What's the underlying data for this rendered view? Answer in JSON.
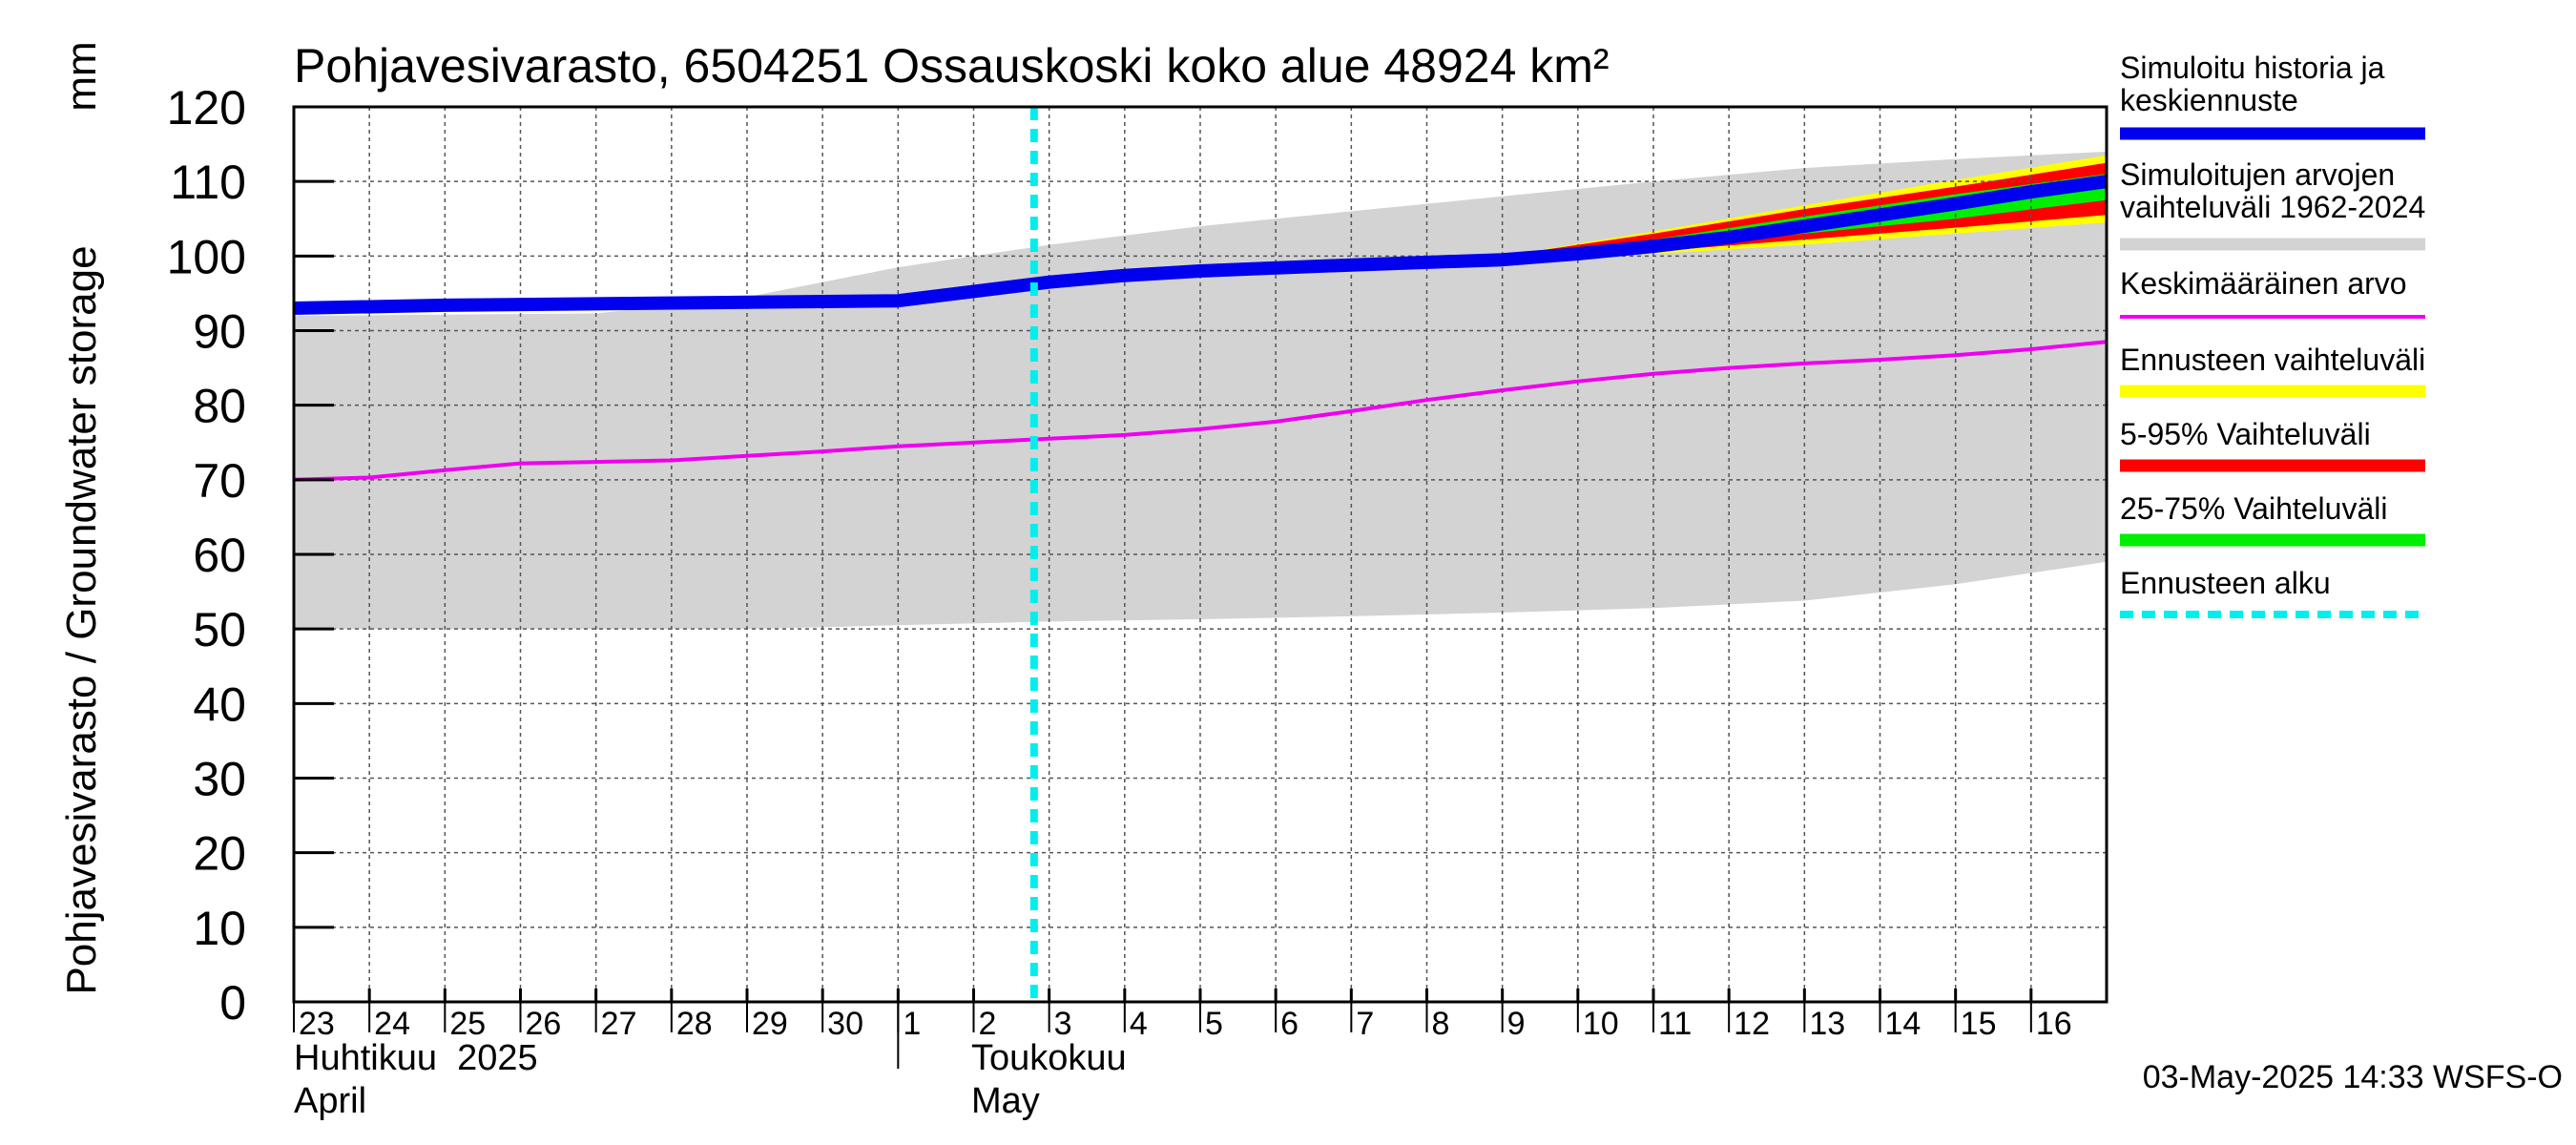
{
  "chart_data": {
    "type": "area",
    "title": "Pohjavesivarasto, 6504251 Ossauskoski koko alue 48924 km²",
    "ylabel": "Pohjavesivarasto / Groundwater storage",
    "yunit": "mm",
    "ylim": [
      0,
      120
    ],
    "yticks": [
      0,
      10,
      20,
      30,
      40,
      50,
      60,
      70,
      80,
      90,
      100,
      110,
      120
    ],
    "xlim": [
      "2025-04-23",
      "2025-05-17"
    ],
    "x_tick_labels": [
      "23",
      "24",
      "25",
      "26",
      "27",
      "28",
      "29",
      "30",
      "1",
      "2",
      "3",
      "4",
      "5",
      "6",
      "7",
      "8",
      "9",
      "10",
      "11",
      "12",
      "13",
      "14",
      "15",
      "16"
    ],
    "month_labels": [
      {
        "fi": "Huhtikuu  2025",
        "en": "April"
      },
      {
        "fi": "Toukokuu",
        "en": "May"
      }
    ],
    "grid": true,
    "legend_position": "right",
    "forecast_start": "2025-05-03",
    "timestamp": "03-May-2025 14:33 WSFS-O",
    "colors": {
      "simulated": "#0000ee",
      "historical_range": "#d3d3d3",
      "mean": "#ee00ee",
      "forecast_range": "#ffff00",
      "range_5_95": "#ff0000",
      "range_25_75": "#00ee00",
      "forecast_start": "#00eeee"
    },
    "legend": [
      {
        "key": "simulated",
        "label": "Simuloitu historia ja keskiennuste"
      },
      {
        "key": "historical_range",
        "label": "Simuloitujen arvojen vaihteluväli 1962-2024"
      },
      {
        "key": "mean",
        "label": "Keskimääräinen arvo"
      },
      {
        "key": "forecast_range",
        "label": "Ennusteen vaihteluväli"
      },
      {
        "key": "range_5_95",
        "label": "5-95% Vaihteluväli"
      },
      {
        "key": "range_25_75",
        "label": "25-75% Vaihteluväli"
      },
      {
        "key": "forecast_start",
        "label": "Ennusteen alku"
      }
    ],
    "series": [
      {
        "key": "simulated",
        "name": "Simuloitu historia ja keskiennuste",
        "x": [
          "2025-04-23",
          "2025-04-25",
          "2025-04-27",
          "2025-04-29",
          "2025-05-01",
          "2025-05-03",
          "2025-05-04",
          "2025-05-05",
          "2025-05-07",
          "2025-05-09",
          "2025-05-10",
          "2025-05-11",
          "2025-05-12",
          "2025-05-13",
          "2025-05-14",
          "2025-05-15",
          "2025-05-16",
          "2025-05-17"
        ],
        "y": [
          93,
          93.4,
          93.6,
          93.8,
          94,
          96.5,
          97.4,
          98,
          98.8,
          99.5,
          100.3,
          101.3,
          102.5,
          104,
          105.5,
          107,
          108.6,
          110
        ]
      },
      {
        "key": "mean",
        "name": "Keskimääräinen arvo",
        "x": [
          "2025-04-23",
          "2025-04-24",
          "2025-04-25",
          "2025-04-26",
          "2025-04-27",
          "2025-04-28",
          "2025-04-29",
          "2025-04-30",
          "2025-05-01",
          "2025-05-02",
          "2025-05-03",
          "2025-05-04",
          "2025-05-05",
          "2025-05-06",
          "2025-05-07",
          "2025-05-08",
          "2025-05-09",
          "2025-05-10",
          "2025-05-11",
          "2025-05-12",
          "2025-05-13",
          "2025-05-14",
          "2025-05-15",
          "2025-05-16",
          "2025-05-17"
        ],
        "y": [
          70,
          70.3,
          71.3,
          72.2,
          72.4,
          72.6,
          73.2,
          73.8,
          74.5,
          75,
          75.5,
          76,
          76.8,
          77.8,
          79.2,
          80.7,
          82,
          83.2,
          84.2,
          85,
          85.6,
          86.1,
          86.7,
          87.5,
          88.5
        ]
      },
      {
        "key": "historical_range",
        "name": "Simuloitujen arvojen vaihteluväli 1962-2024",
        "x": [
          "2025-04-23",
          "2025-04-27",
          "2025-04-29",
          "2025-05-01",
          "2025-05-03",
          "2025-05-05",
          "2025-05-07",
          "2025-05-09",
          "2025-05-11",
          "2025-05-13",
          "2025-05-15",
          "2025-05-17"
        ],
        "upper": [
          92,
          92.3,
          94.5,
          98.5,
          101.5,
          104,
          106,
          108,
          110,
          111.8,
          113,
          114
        ],
        "lower": [
          50,
          50,
          50,
          50.5,
          51,
          51.3,
          51.7,
          52.2,
          52.8,
          53.8,
          56,
          59
        ]
      },
      {
        "key": "forecast_range",
        "name": "Ennusteen vaihteluväli",
        "x": [
          "2025-05-09",
          "2025-05-11",
          "2025-05-13",
          "2025-05-15",
          "2025-05-17"
        ],
        "upper": [
          100,
          103.3,
          106.8,
          110.2,
          113.5
        ],
        "lower": [
          99.5,
          100.3,
          101.5,
          103,
          104.5
        ]
      },
      {
        "key": "range_5_95",
        "name": "5-95% Vaihteluväli",
        "x": [
          "2025-05-09",
          "2025-05-11",
          "2025-05-13",
          "2025-05-15",
          "2025-05-17"
        ],
        "upper": [
          100,
          103,
          106.3,
          109.3,
          112.5
        ],
        "lower": [
          99.5,
          100.6,
          102.2,
          103.8,
          105.5
        ]
      },
      {
        "key": "range_25_75",
        "name": "25-75% Vaihteluväli",
        "x": [
          "2025-05-09",
          "2025-05-11",
          "2025-05-13",
          "2025-05-15",
          "2025-05-17"
        ],
        "upper": [
          99.8,
          102.2,
          105.3,
          108.3,
          111
        ],
        "lower": [
          99.6,
          101,
          103,
          105,
          107.5
        ]
      }
    ]
  }
}
